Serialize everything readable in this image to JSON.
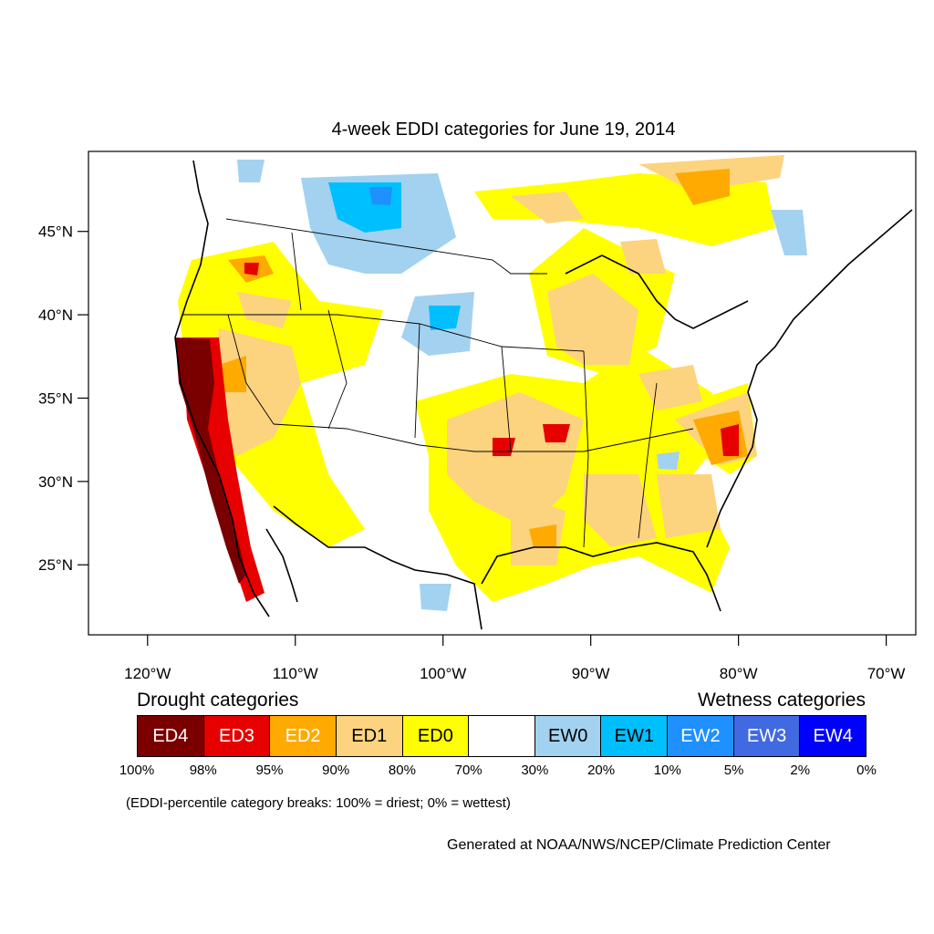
{
  "title": "4-week EDDI categories for June 19, 2014",
  "axes": {
    "lat_labels": [
      "45°N",
      "40°N",
      "35°N",
      "30°N",
      "25°N"
    ],
    "lon_labels": [
      "120°W",
      "110°W",
      "100°W",
      "90°W",
      "80°W",
      "70°W"
    ],
    "lat_values": [
      45,
      40,
      35,
      30,
      25
    ],
    "lon_values": [
      -120,
      -110,
      -100,
      -90,
      -80,
      -70
    ],
    "lat_range": [
      20.8,
      49.8
    ],
    "lon_range": [
      -124,
      -68
    ]
  },
  "legend": {
    "drought_title": "Drought categories",
    "wetness_title": "Wetness categories",
    "categories": [
      {
        "label": "ED4",
        "color": "#7a0000",
        "text_color": "#ffffff"
      },
      {
        "label": "ED3",
        "color": "#e60000",
        "text_color": "#ffffff"
      },
      {
        "label": "ED2",
        "color": "#ffaa00",
        "text_color": "#ffffff"
      },
      {
        "label": "ED1",
        "color": "#fcd37f",
        "text_color": "#000000"
      },
      {
        "label": "ED0",
        "color": "#ffff00",
        "text_color": "#000000"
      },
      {
        "label": "",
        "color": "#ffffff",
        "text_color": "#000000"
      },
      {
        "label": "EW0",
        "color": "#a3d2f0",
        "text_color": "#000000"
      },
      {
        "label": "EW1",
        "color": "#00bfff",
        "text_color": "#000000"
      },
      {
        "label": "EW2",
        "color": "#1e90ff",
        "text_color": "#ffffff"
      },
      {
        "label": "EW3",
        "color": "#4169e1",
        "text_color": "#ffffff"
      },
      {
        "label": "EW4",
        "color": "#0000ff",
        "text_color": "#ffffff"
      }
    ],
    "breaks": [
      "100%",
      "98%",
      "95%",
      "90%",
      "80%",
      "70%",
      "30%",
      "20%",
      "10%",
      "5%",
      "2%",
      "0%"
    ],
    "note": "(EDDI-percentile category breaks: 100% = driest; 0% = wettest)"
  },
  "credit": "Generated at NOAA/NWS/NCEP/Climate Prediction Center"
}
